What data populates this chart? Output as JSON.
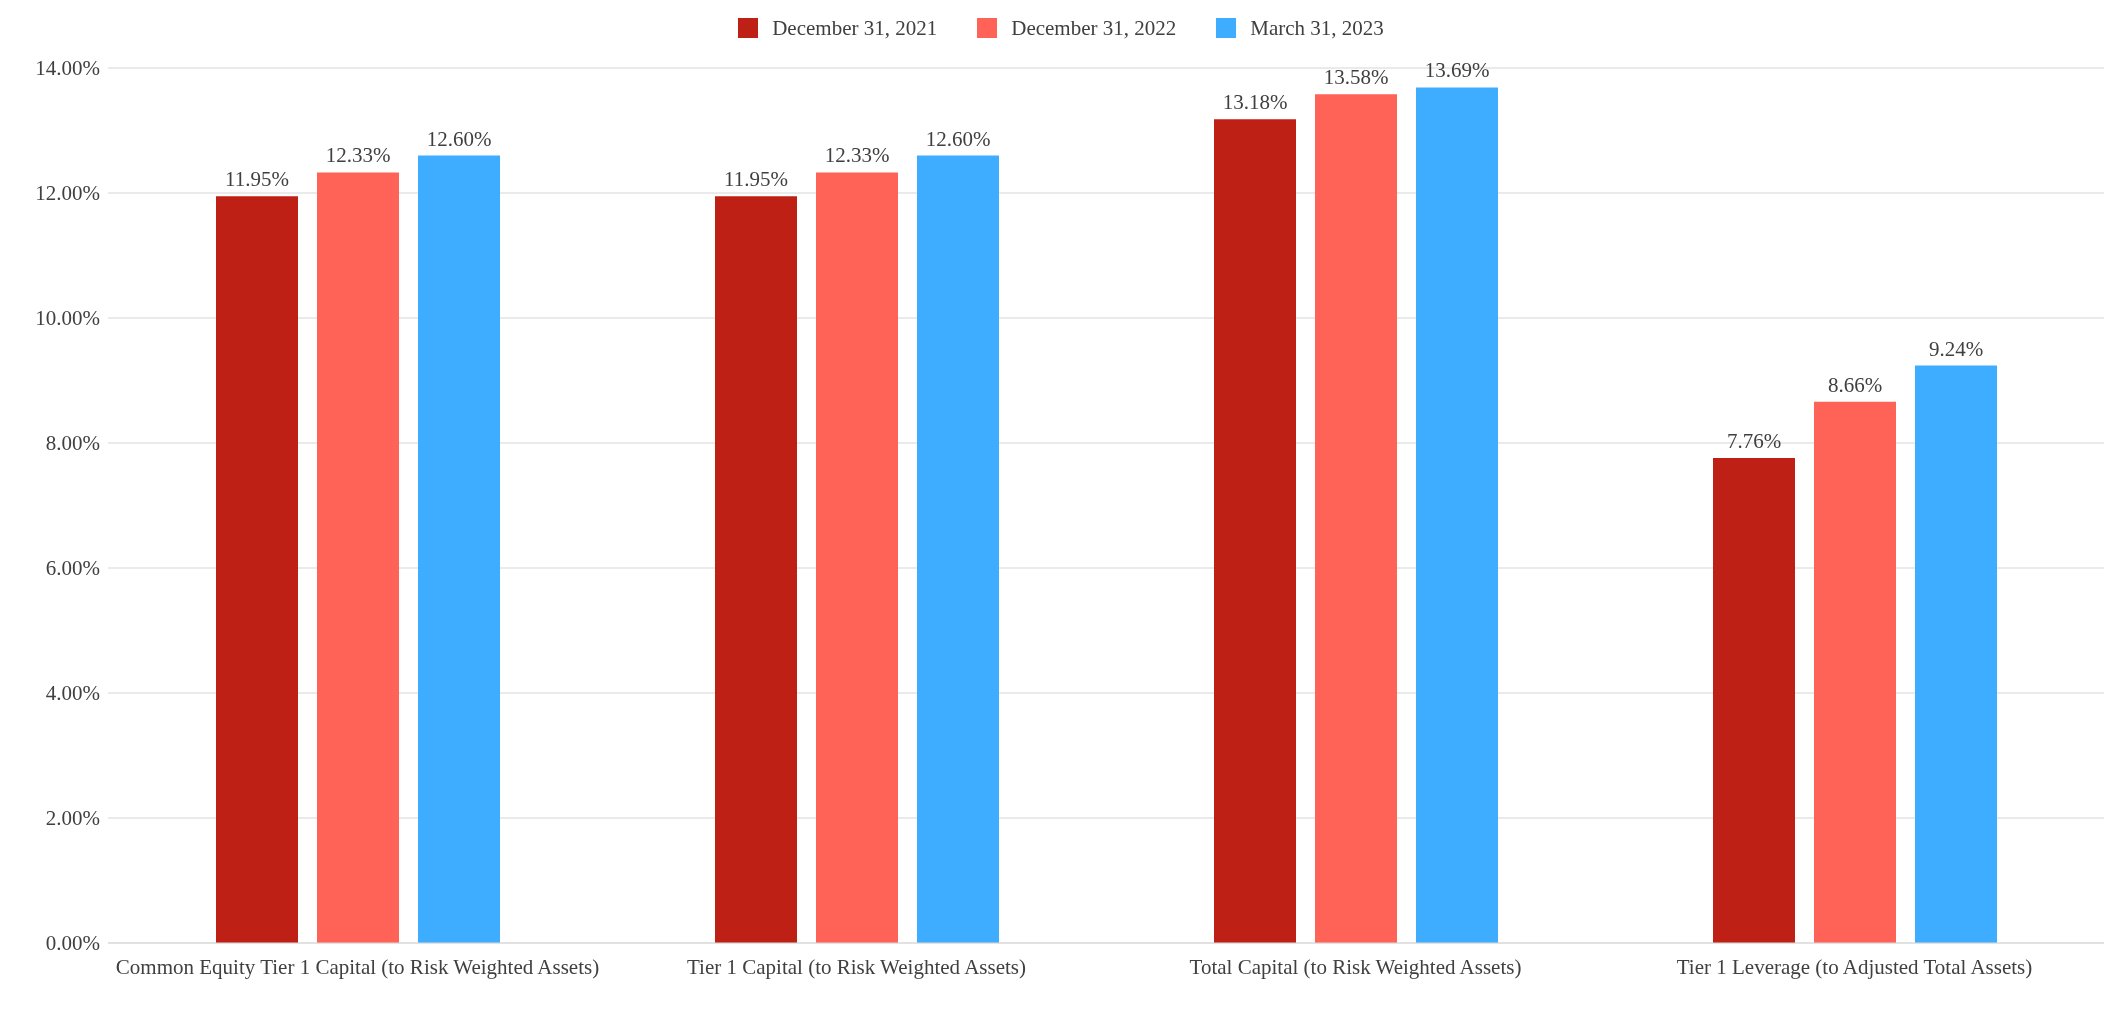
{
  "chart_data": {
    "type": "bar",
    "categories": [
      "Common Equity Tier 1 Capital (to Risk Weighted Assets)",
      "Tier 1 Capital (to Risk Weighted Assets)",
      "Total Capital (to Risk Weighted Assets)",
      "Tier 1 Leverage (to Adjusted Total Assets)"
    ],
    "series": [
      {
        "name": "December 31, 2021",
        "color": "#bf2016",
        "values": [
          11.95,
          11.95,
          13.18,
          7.76
        ],
        "value_labels": [
          "11.95%",
          "11.95%",
          "13.18%",
          "7.76%"
        ]
      },
      {
        "name": "December 31, 2022",
        "color": "#ff6257",
        "values": [
          12.33,
          12.33,
          13.58,
          8.66
        ],
        "value_labels": [
          "12.33%",
          "12.33%",
          "13.58%",
          "8.66%"
        ]
      },
      {
        "name": "March 31, 2023",
        "color": "#3fadff",
        "values": [
          12.6,
          12.6,
          13.69,
          9.24
        ],
        "value_labels": [
          "12.60%",
          "12.60%",
          "13.69%",
          "9.24%"
        ]
      }
    ],
    "ylim": [
      0,
      14
    ],
    "yticks": [
      {
        "value": 0,
        "label": "0.00%"
      },
      {
        "value": 2,
        "label": "2.00%"
      },
      {
        "value": 4,
        "label": "4.00%"
      },
      {
        "value": 6,
        "label": "6.00%"
      },
      {
        "value": 8,
        "label": "8.00%"
      },
      {
        "value": 10,
        "label": "10.00%"
      },
      {
        "value": 12,
        "label": "12.00%"
      },
      {
        "value": 14,
        "label": "14.00%"
      }
    ],
    "grid": "y",
    "legend": "top"
  }
}
